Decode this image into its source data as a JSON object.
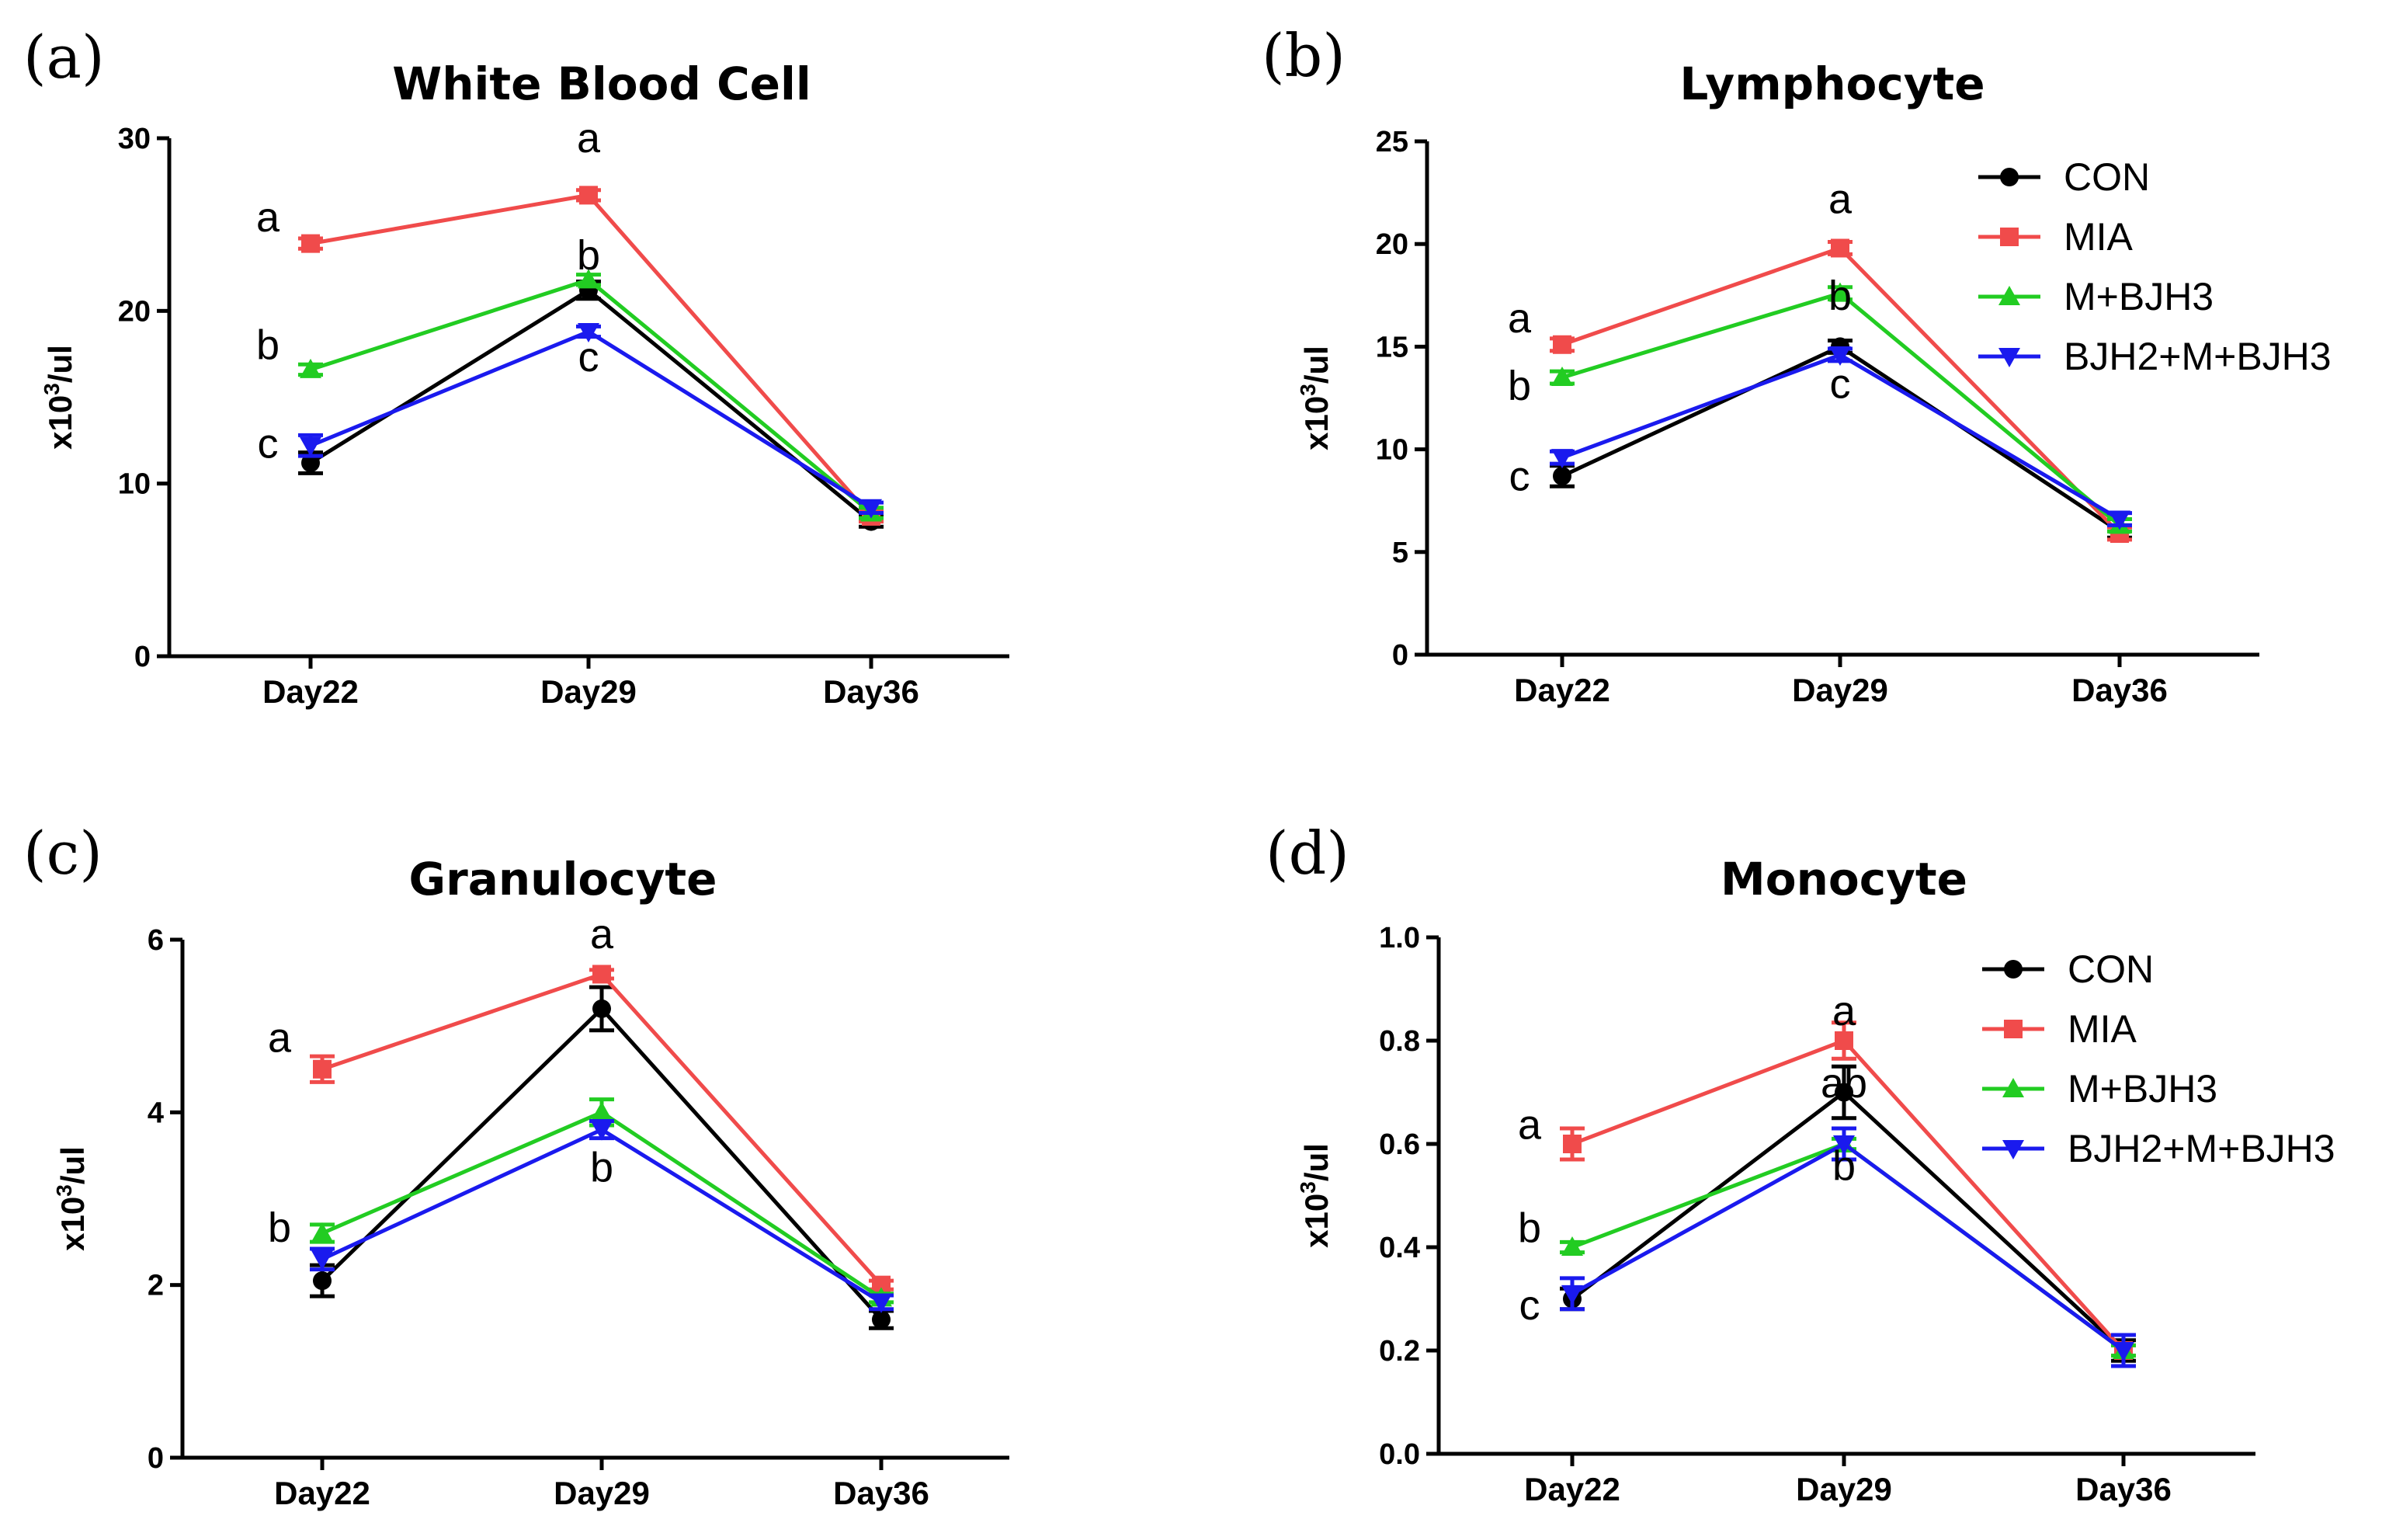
{
  "colors": {
    "CON": "#000000",
    "MIA": "#f04b4b",
    "M+BJH3": "#22cc22",
    "BJH2+M+BJH3": "#1a1aee",
    "axis": "#000000"
  },
  "chart_data": [
    {
      "type": "line",
      "panel": "(a)",
      "title": "White Blood Cell",
      "ylabel": "x10",
      "ylabel_sup": "3",
      "ylabel_unit": "/ul",
      "categories": [
        "Day22",
        "Day29",
        "Day36"
      ],
      "ylim": [
        0,
        30
      ],
      "yticks": [
        0,
        10,
        20,
        30
      ],
      "ytick_labels": [
        "0",
        "10",
        "20",
        "30"
      ],
      "legend": false,
      "series": [
        {
          "name": "CON",
          "marker": "circle",
          "values": [
            11.2,
            21.2,
            7.8
          ],
          "errors": [
            0.6,
            0.5,
            0.3
          ]
        },
        {
          "name": "MIA",
          "marker": "square",
          "values": [
            23.9,
            26.7,
            8.1
          ],
          "errors": [
            0.3,
            0.3,
            0.3
          ]
        },
        {
          "name": "M+BJH3",
          "marker": "triangle-up",
          "values": [
            16.6,
            21.8,
            8.3
          ],
          "errors": [
            0.3,
            0.3,
            0.3
          ]
        },
        {
          "name": "BJH2+M+BJH3",
          "marker": "triangle-down",
          "values": [
            12.2,
            18.8,
            8.6
          ],
          "errors": [
            0.6,
            0.3,
            0.3
          ]
        }
      ],
      "annotations": [
        {
          "text": "a",
          "x": "Day22",
          "y": 24.6
        },
        {
          "text": "b",
          "x": "Day22",
          "y": 17.2
        },
        {
          "text": "c",
          "x": "Day22",
          "y": 11.5
        },
        {
          "text": "a",
          "x": "Day29",
          "y": 29.2
        },
        {
          "text": "b",
          "x": "Day29",
          "y": 22.4
        },
        {
          "text": "c",
          "x": "Day29",
          "y": 16.5
        }
      ]
    },
    {
      "type": "line",
      "panel": "(b)",
      "title": "Lymphocyte",
      "ylabel": "x10",
      "ylabel_sup": "3",
      "ylabel_unit": "/ul",
      "categories": [
        "Day22",
        "Day29",
        "Day36"
      ],
      "ylim": [
        0,
        25
      ],
      "yticks": [
        0,
        5,
        10,
        15,
        20,
        25
      ],
      "ytick_labels": [
        "0",
        "5",
        "10",
        "15",
        "20",
        "25"
      ],
      "legend": true,
      "series": [
        {
          "name": "CON",
          "marker": "circle",
          "values": [
            8.7,
            15.0,
            6.0
          ],
          "errors": [
            0.5,
            0.3,
            0.3
          ]
        },
        {
          "name": "MIA",
          "marker": "square",
          "values": [
            15.1,
            19.8,
            5.9
          ],
          "errors": [
            0.3,
            0.3,
            0.3
          ]
        },
        {
          "name": "M+BJH3",
          "marker": "triangle-up",
          "values": [
            13.5,
            17.6,
            6.3
          ],
          "errors": [
            0.3,
            0.3,
            0.3
          ]
        },
        {
          "name": "BJH2+M+BJH3",
          "marker": "triangle-down",
          "values": [
            9.6,
            14.6,
            6.6
          ],
          "errors": [
            0.3,
            0.3,
            0.3
          ]
        }
      ],
      "annotations": [
        {
          "text": "a",
          "x": "Day22",
          "y": 15.7
        },
        {
          "text": "b",
          "x": "Day22",
          "y": 12.4
        },
        {
          "text": "c",
          "x": "Day22",
          "y": 8.0
        },
        {
          "text": "a",
          "x": "Day29",
          "y": 21.5
        },
        {
          "text": "b",
          "x": "Day29",
          "y": 16.8
        },
        {
          "text": "c",
          "x": "Day29",
          "y": 12.5
        }
      ]
    },
    {
      "type": "line",
      "panel": "(c)",
      "title": "Granulocyte",
      "ylabel": "x10",
      "ylabel_sup": "3",
      "ylabel_unit": "/ul",
      "categories": [
        "Day22",
        "Day29",
        "Day36"
      ],
      "ylim": [
        0,
        6
      ],
      "yticks": [
        0,
        2,
        4,
        6
      ],
      "ytick_labels": [
        "0",
        "2",
        "4",
        "6"
      ],
      "legend": false,
      "series": [
        {
          "name": "CON",
          "marker": "circle",
          "values": [
            2.05,
            5.2,
            1.6
          ],
          "errors": [
            0.18,
            0.25,
            0.1
          ]
        },
        {
          "name": "MIA",
          "marker": "square",
          "values": [
            4.5,
            5.6,
            2.0
          ],
          "errors": [
            0.15,
            0.05,
            0.05
          ]
        },
        {
          "name": "M+BJH3",
          "marker": "triangle-up",
          "values": [
            2.6,
            4.0,
            1.85
          ],
          "errors": [
            0.1,
            0.15,
            0.05
          ]
        },
        {
          "name": "BJH2+M+BJH3",
          "marker": "triangle-down",
          "values": [
            2.3,
            3.8,
            1.8
          ],
          "errors": [
            0.12,
            0.1,
            0.08
          ]
        }
      ],
      "annotations": [
        {
          "text": "a",
          "x": "Day22",
          "y": 4.7
        },
        {
          "text": "b",
          "x": "Day22",
          "y": 2.5
        },
        {
          "text": "a",
          "x": "Day29",
          "y": 5.9
        },
        {
          "text": "b",
          "x": "Day29",
          "y": 3.2
        }
      ]
    },
    {
      "type": "line",
      "panel": "(d)",
      "title": "Monocyte",
      "ylabel": "x10",
      "ylabel_sup": "3",
      "ylabel_unit": "/ul",
      "categories": [
        "Day22",
        "Day29",
        "Day36"
      ],
      "ylim": [
        0,
        1.0
      ],
      "yticks": [
        0,
        0.2,
        0.4,
        0.6,
        0.8,
        1.0
      ],
      "ytick_labels": [
        "0.0",
        "0.2",
        "0.4",
        "0.6",
        "0.8",
        "1.0"
      ],
      "legend": true,
      "series": [
        {
          "name": "CON",
          "marker": "circle",
          "values": [
            0.3,
            0.7,
            0.2
          ],
          "errors": [
            0.02,
            0.05,
            0.02
          ]
        },
        {
          "name": "MIA",
          "marker": "square",
          "values": [
            0.6,
            0.8,
            0.2
          ],
          "errors": [
            0.03,
            0.035,
            0.01
          ]
        },
        {
          "name": "M+BJH3",
          "marker": "triangle-up",
          "values": [
            0.4,
            0.6,
            0.2
          ],
          "errors": [
            0.01,
            0.01,
            0.01
          ]
        },
        {
          "name": "BJH2+M+BJH3",
          "marker": "triangle-down",
          "values": [
            0.31,
            0.6,
            0.2
          ],
          "errors": [
            0.03,
            0.03,
            0.03
          ]
        }
      ],
      "annotations": [
        {
          "text": "a",
          "x": "Day22",
          "y": 0.61
        },
        {
          "text": "b",
          "x": "Day22",
          "y": 0.41
        },
        {
          "text": "c",
          "x": "Day22",
          "y": 0.26
        },
        {
          "text": "a",
          "x": "Day29",
          "y": 0.83
        },
        {
          "text": "ab",
          "x": "Day29",
          "y": 0.69
        },
        {
          "text": "b",
          "x": "Day29",
          "y": 0.53
        }
      ]
    }
  ]
}
